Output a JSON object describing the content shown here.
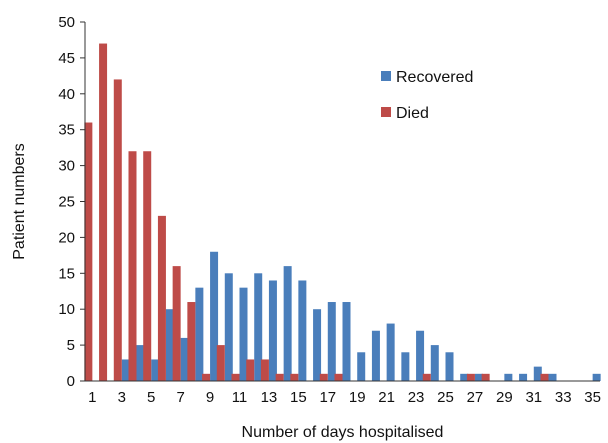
{
  "chart_data": {
    "type": "bar",
    "title": "",
    "xlabel": "Number of days hospitalised",
    "ylabel": "Patient numbers",
    "ylim": [
      0,
      50
    ],
    "yticks": [
      0,
      5,
      10,
      15,
      20,
      25,
      30,
      35,
      40,
      45,
      50
    ],
    "categories": [
      1,
      2,
      3,
      4,
      5,
      6,
      7,
      8,
      9,
      10,
      11,
      12,
      13,
      14,
      15,
      16,
      17,
      18,
      19,
      20,
      21,
      22,
      23,
      24,
      25,
      26,
      27,
      28,
      29,
      30,
      31,
      32,
      33,
      34,
      35
    ],
    "xtick_labels": [
      "1",
      "3",
      "5",
      "7",
      "9",
      "11",
      "13",
      "15",
      "17",
      "19",
      "21",
      "23",
      "25",
      "27",
      "29",
      "31",
      "33",
      "35"
    ],
    "grid": false,
    "legend_position": "top-right",
    "series": [
      {
        "name": "Recovered",
        "color": "#4a7ebb",
        "values": [
          0,
          0,
          3,
          5,
          3,
          10,
          6,
          13,
          18,
          15,
          13,
          15,
          14,
          16,
          14,
          10,
          11,
          11,
          4,
          7,
          8,
          4,
          7,
          5,
          4,
          1,
          1,
          0,
          1,
          1,
          2,
          1,
          0,
          0,
          1
        ]
      },
      {
        "name": "Died",
        "color": "#be4b48",
        "values": [
          36,
          47,
          42,
          32,
          32,
          23,
          16,
          11,
          1,
          5,
          1,
          3,
          3,
          1,
          1,
          0,
          1,
          1,
          0,
          0,
          0,
          0,
          0,
          1,
          0,
          0,
          1,
          1,
          0,
          0,
          0,
          1,
          0,
          0,
          0
        ]
      }
    ]
  }
}
